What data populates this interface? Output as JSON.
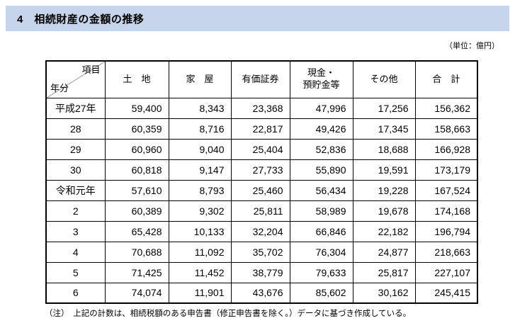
{
  "page": {
    "title": "4　相続財産の金額の推移",
    "unit_label": "（単位：億円）",
    "note": "（注）　上記の計数は、相続税額のある申告書（修正申告書を除く。）データに基づき作成している。"
  },
  "table": {
    "corner": {
      "top_right": "項目",
      "bottom_left": "年分"
    },
    "columns": [
      "土　地",
      "家　屋",
      "有価証券",
      "現金・\n預貯金等",
      "その他",
      "合　計"
    ],
    "rows": [
      {
        "year": "平成27年",
        "values": [
          "59,400",
          "8,343",
          "23,368",
          "47,996",
          "17,256",
          "156,362"
        ]
      },
      {
        "year": "28",
        "values": [
          "60,359",
          "8,716",
          "22,817",
          "49,426",
          "17,345",
          "158,663"
        ]
      },
      {
        "year": "29",
        "values": [
          "60,960",
          "9,040",
          "25,404",
          "52,836",
          "18,688",
          "166,928"
        ]
      },
      {
        "year": "30",
        "values": [
          "60,818",
          "9,147",
          "27,733",
          "55,890",
          "19,591",
          "173,179"
        ]
      },
      {
        "year": "令和元年",
        "values": [
          "57,610",
          "8,793",
          "25,460",
          "56,434",
          "19,228",
          "167,524"
        ]
      },
      {
        "year": "2",
        "values": [
          "60,389",
          "9,302",
          "25,811",
          "58,989",
          "19,678",
          "174,168"
        ]
      },
      {
        "year": "3",
        "values": [
          "65,428",
          "10,133",
          "32,204",
          "66,846",
          "22,182",
          "196,794"
        ]
      },
      {
        "year": "4",
        "values": [
          "70,688",
          "11,092",
          "35,702",
          "76,304",
          "24,877",
          "218,663"
        ]
      },
      {
        "year": "5",
        "values": [
          "71,425",
          "11,452",
          "38,779",
          "79,633",
          "25,817",
          "227,107"
        ]
      },
      {
        "year": "6",
        "values": [
          "74,074",
          "11,901",
          "43,676",
          "85,602",
          "30,162",
          "245,415"
        ]
      }
    ]
  },
  "colors": {
    "title_band": "#c6d5eb",
    "border": "#000000",
    "diagonal_line": "#b4b4b4"
  }
}
